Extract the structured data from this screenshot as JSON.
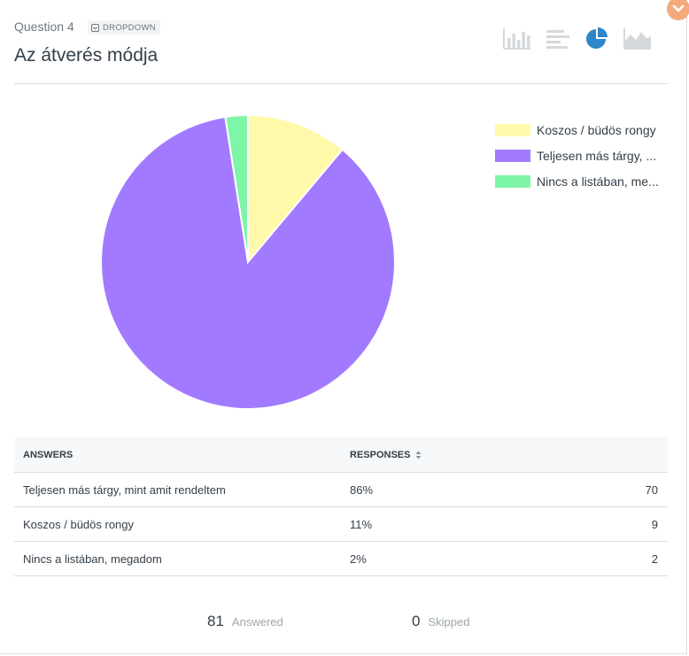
{
  "question": {
    "number_label": "Question 4",
    "type_badge": "DROPDOWN",
    "title": "Az átverés módja"
  },
  "toolbar": {
    "views": [
      {
        "name": "vertical-bar-chart",
        "active": false
      },
      {
        "name": "horizontal-bar-chart",
        "active": false
      },
      {
        "name": "pie-chart",
        "active": true
      },
      {
        "name": "area-chart",
        "active": false
      }
    ]
  },
  "colors": {
    "accent": "#2e87c8",
    "inactive_icon": "#d5d9dc",
    "corner_toggle": "#f4a97c"
  },
  "chart_data": {
    "type": "pie",
    "categories": [
      "Koszos / büdös rongy",
      "Teljesen más tárgy, mint amit rendeltem",
      "Nincs a listában, megadom"
    ],
    "values": [
      9,
      70,
      2
    ],
    "colors": [
      "#fff9a9",
      "#a27aff",
      "#7ef5a7"
    ],
    "legend_labels": [
      "Koszos / büdös rongy",
      "Teljesen más tárgy, ...",
      "Nincs a listában, me..."
    ],
    "legend_position": "right"
  },
  "table": {
    "headers": {
      "answers": "ANSWERS",
      "responses": "RESPONSES"
    },
    "rows": [
      {
        "answer": "Teljesen más tárgy, mint amit rendeltem",
        "percent": "86%",
        "count": "70"
      },
      {
        "answer": "Koszos / büdös rongy",
        "percent": "11%",
        "count": "9"
      },
      {
        "answer": "Nincs a listában, megadom",
        "percent": "2%",
        "count": "2"
      }
    ]
  },
  "summary": {
    "answered_count": "81",
    "answered_label": "Answered",
    "skipped_count": "0",
    "skipped_label": "Skipped"
  }
}
